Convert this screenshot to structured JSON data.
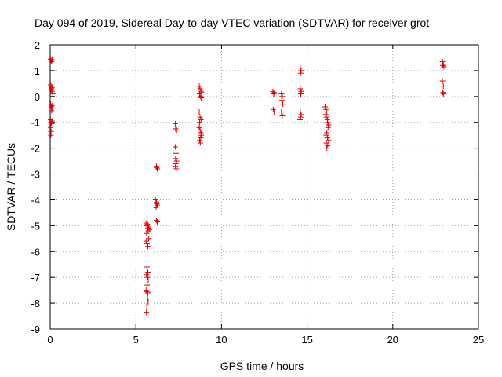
{
  "chart_data": {
    "type": "scatter",
    "title": "Day 094 of 2019, Sidereal Day-to-day VTEC variation (SDTVAR) for receiver grot",
    "xlabel": "GPS time / hours",
    "ylabel": "SDTVAR / TECUs",
    "xlim": [
      0,
      25
    ],
    "ylim": [
      -9,
      2
    ],
    "xticks": [
      "0",
      "5",
      "10",
      "15",
      "20",
      "25"
    ],
    "yticks": [
      "-9",
      "-8",
      "-7",
      "-6",
      "-5",
      "-4",
      "-3",
      "-2",
      "-1",
      "0",
      "1",
      "2"
    ],
    "grid": true,
    "marker": "+",
    "color": "#e00000",
    "series": [
      {
        "name": "SDTVAR",
        "points": [
          [
            0.02,
            1.45
          ],
          [
            0.05,
            1.4
          ],
          [
            0.08,
            1.35
          ],
          [
            0.12,
            1.42
          ],
          [
            0.02,
            0.45
          ],
          [
            0.05,
            0.4
          ],
          [
            0.08,
            0.3
          ],
          [
            0.1,
            0.35
          ],
          [
            0.12,
            0.2
          ],
          [
            0.15,
            0.1
          ],
          [
            0.05,
            0.25
          ],
          [
            0.03,
            -0.3
          ],
          [
            0.06,
            -0.4
          ],
          [
            0.1,
            -0.35
          ],
          [
            0.13,
            -0.45
          ],
          [
            0.08,
            -0.55
          ],
          [
            0.02,
            -0.9
          ],
          [
            0.05,
            -1.0
          ],
          [
            0.08,
            -1.05
          ],
          [
            0.11,
            -0.95
          ],
          [
            0.03,
            -1.2
          ],
          [
            0.05,
            -1.35
          ],
          [
            0.04,
            -1.5
          ],
          [
            5.6,
            -4.9
          ],
          [
            5.65,
            -5.0
          ],
          [
            5.7,
            -5.1
          ],
          [
            5.72,
            -5.2
          ],
          [
            5.75,
            -5.05
          ],
          [
            5.8,
            -5.15
          ],
          [
            5.68,
            -4.95
          ],
          [
            5.63,
            -5.3
          ],
          [
            5.6,
            -5.6
          ],
          [
            5.65,
            -5.7
          ],
          [
            5.7,
            -5.8
          ],
          [
            5.75,
            -5.5
          ],
          [
            5.65,
            -6.6
          ],
          [
            5.7,
            -6.8
          ],
          [
            5.62,
            -6.9
          ],
          [
            5.68,
            -7.0
          ],
          [
            5.72,
            -7.1
          ],
          [
            5.66,
            -7.3
          ],
          [
            5.6,
            -7.5
          ],
          [
            5.65,
            -7.55
          ],
          [
            5.7,
            -7.6
          ],
          [
            5.68,
            -7.8
          ],
          [
            5.72,
            -7.95
          ],
          [
            5.64,
            -8.1
          ],
          [
            5.62,
            -8.35
          ],
          [
            6.2,
            -2.7
          ],
          [
            6.25,
            -2.8
          ],
          [
            6.22,
            -2.75
          ],
          [
            6.15,
            -4.0
          ],
          [
            6.2,
            -4.1
          ],
          [
            6.25,
            -4.2
          ],
          [
            6.18,
            -4.3
          ],
          [
            6.22,
            -4.15
          ],
          [
            6.2,
            -4.8
          ],
          [
            6.25,
            -4.85
          ],
          [
            7.3,
            -1.05
          ],
          [
            7.35,
            -1.15
          ],
          [
            7.32,
            -1.25
          ],
          [
            7.38,
            -1.3
          ],
          [
            7.3,
            -1.95
          ],
          [
            7.35,
            -2.2
          ],
          [
            7.32,
            -2.4
          ],
          [
            7.38,
            -2.5
          ],
          [
            7.34,
            -2.6
          ],
          [
            7.31,
            -2.7
          ],
          [
            7.36,
            -2.8
          ],
          [
            8.7,
            0.4
          ],
          [
            8.75,
            0.3
          ],
          [
            8.8,
            0.2
          ],
          [
            8.72,
            0.1
          ],
          [
            8.78,
            0.0
          ],
          [
            8.85,
            0.15
          ],
          [
            8.82,
            -0.05
          ],
          [
            8.7,
            -0.6
          ],
          [
            8.75,
            -0.8
          ],
          [
            8.8,
            -0.9
          ],
          [
            8.72,
            -1.0
          ],
          [
            8.7,
            -1.2
          ],
          [
            8.75,
            -1.3
          ],
          [
            8.8,
            -1.4
          ],
          [
            8.82,
            -1.5
          ],
          [
            8.78,
            -1.6
          ],
          [
            8.72,
            -1.7
          ],
          [
            8.76,
            -1.8
          ],
          [
            13.0,
            0.2
          ],
          [
            13.05,
            0.1
          ],
          [
            13.1,
            0.15
          ],
          [
            13.02,
            -0.5
          ],
          [
            13.08,
            -0.6
          ],
          [
            13.5,
            0.1
          ],
          [
            13.55,
            0.0
          ],
          [
            13.52,
            -0.15
          ],
          [
            13.58,
            -0.3
          ],
          [
            13.5,
            -0.6
          ],
          [
            13.55,
            -0.75
          ],
          [
            14.6,
            1.1
          ],
          [
            14.65,
            1.0
          ],
          [
            14.62,
            0.9
          ],
          [
            14.6,
            0.3
          ],
          [
            14.65,
            0.2
          ],
          [
            14.63,
            0.1
          ],
          [
            14.6,
            -0.6
          ],
          [
            14.65,
            -0.7
          ],
          [
            14.62,
            -0.8
          ],
          [
            14.58,
            -0.9
          ],
          [
            16.05,
            -0.4
          ],
          [
            16.1,
            -0.5
          ],
          [
            16.15,
            -0.6
          ],
          [
            16.08,
            -0.7
          ],
          [
            16.12,
            -0.8
          ],
          [
            16.18,
            -0.9
          ],
          [
            16.2,
            -1.0
          ],
          [
            16.25,
            -1.1
          ],
          [
            16.22,
            -1.2
          ],
          [
            16.28,
            -1.3
          ],
          [
            16.15,
            -1.4
          ],
          [
            16.1,
            -1.5
          ],
          [
            16.18,
            -1.6
          ],
          [
            16.25,
            -1.7
          ],
          [
            16.12,
            -1.8
          ],
          [
            16.2,
            -1.9
          ],
          [
            16.15,
            -2.0
          ],
          [
            22.9,
            1.35
          ],
          [
            22.95,
            1.25
          ],
          [
            22.92,
            1.2
          ],
          [
            22.98,
            1.15
          ],
          [
            22.9,
            0.6
          ],
          [
            22.95,
            0.4
          ],
          [
            22.92,
            0.15
          ],
          [
            22.97,
            0.1
          ]
        ]
      }
    ]
  }
}
